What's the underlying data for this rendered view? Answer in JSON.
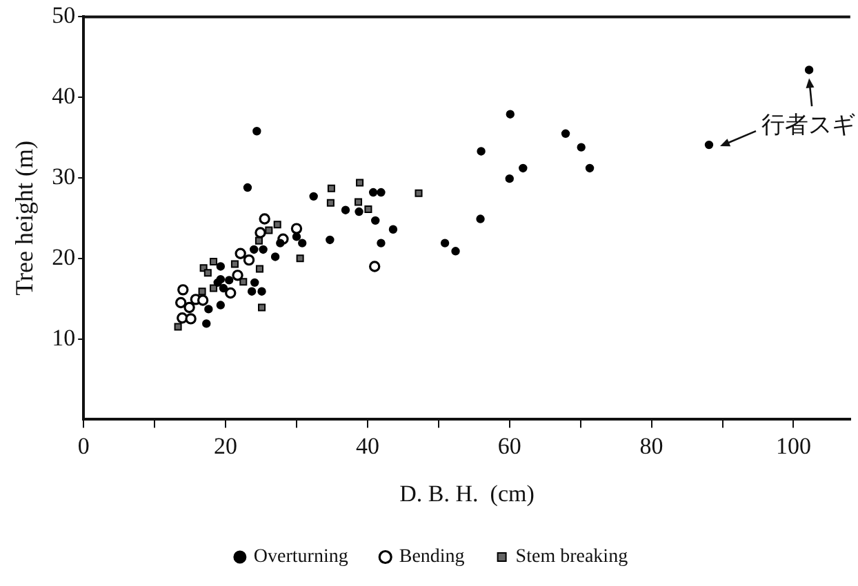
{
  "chart_data": {
    "type": "scatter",
    "xlabel": "D. B. H.  (cm)",
    "ylabel": "Tree height (m)",
    "xlim": [
      0,
      108
    ],
    "ylim": [
      0,
      50
    ],
    "xticks": [
      0,
      {
        "value": 10,
        "label": null
      },
      20,
      {
        "value": 30,
        "label": null
      },
      40,
      {
        "value": 50,
        "label": null
      },
      60,
      {
        "value": 70,
        "label": null
      },
      80,
      {
        "value": 90,
        "label": null
      },
      100
    ],
    "yticks": [
      10,
      20,
      30,
      40,
      50
    ],
    "grid": false,
    "legend": "bottom",
    "annotations": [
      "行者スギ"
    ],
    "series": [
      {
        "name": "Overturning",
        "color": "#000000",
        "marker": "circle",
        "x": [
          24.4,
          23.1,
          32.4,
          36.9,
          34.7,
          38.8,
          40.8,
          41.9,
          41.1,
          43.6,
          41.9,
          30.8,
          30,
          27.7,
          27,
          25.3,
          24,
          24.1,
          23.7,
          25.1,
          20.5,
          19.3,
          19.3,
          17.6,
          17.3,
          19.3,
          19.7,
          18.9,
          50.9,
          52.4,
          55.9,
          56,
          60.1,
          60,
          61.9,
          67.9,
          70.1,
          71.3,
          88.1,
          102.2
        ],
        "values": [
          35.8,
          28.8,
          27.7,
          26,
          22.3,
          25.8,
          28.2,
          28.2,
          24.7,
          23.6,
          21.9,
          21.9,
          22.7,
          21.9,
          20.2,
          21.1,
          21.1,
          17,
          15.9,
          15.9,
          17.3,
          17.4,
          19,
          13.7,
          11.9,
          14.2,
          16.3,
          17,
          21.9,
          20.9,
          24.9,
          33.3,
          37.9,
          29.9,
          31.2,
          35.5,
          33.8,
          31.2,
          34.1,
          43.4
        ]
      },
      {
        "name": "Bending",
        "color": "#ffffff",
        "marker": "circle",
        "x": [
          14,
          13.7,
          13.9,
          15.1,
          14.9,
          15.8,
          16.8,
          20.7,
          21.7,
          22.1,
          23.3,
          24.9,
          25.5,
          28.1,
          30,
          41
        ],
        "values": [
          16.1,
          14.5,
          12.6,
          12.5,
          13.9,
          14.9,
          14.8,
          15.7,
          17.9,
          20.6,
          19.8,
          23.2,
          24.9,
          22.4,
          23.7,
          19
        ]
      },
      {
        "name": "Stem breaking",
        "color": "#666666",
        "marker": "square",
        "x": [
          13.3,
          16.9,
          17.5,
          18.3,
          16.7,
          18.3,
          21.3,
          22.5,
          24.7,
          24.8,
          25.1,
          26.1,
          27.3,
          30.5,
          34.8,
          34.9,
          38.9,
          38.7,
          40.1,
          47.2
        ],
        "values": [
          11.5,
          18.8,
          18.2,
          19.6,
          15.9,
          16.3,
          19.3,
          17.1,
          22.2,
          18.7,
          13.9,
          23.5,
          24.2,
          20,
          26.9,
          28.7,
          29.4,
          27,
          26.1,
          28.1
        ]
      }
    ]
  }
}
